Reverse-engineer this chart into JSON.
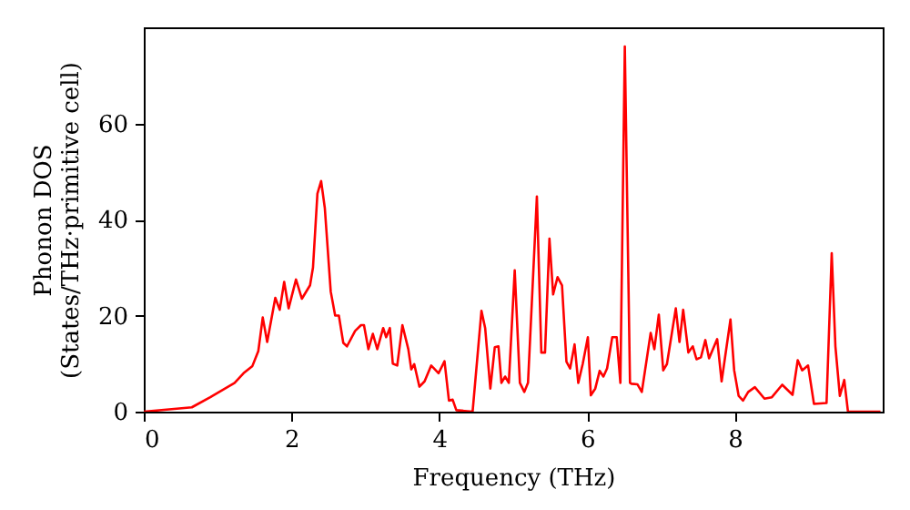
{
  "chart_data": {
    "type": "line",
    "xlabel": "Frequency (THz)",
    "ylabel": "Phonon DOS\n(States/THz·primitive cell)",
    "xlim": [
      0,
      10
    ],
    "ylim": [
      0,
      80
    ],
    "xticks": [
      0,
      2,
      4,
      6,
      8
    ],
    "yticks": [
      0,
      20,
      40,
      60
    ],
    "grid": false,
    "marker": "none",
    "line_style": "solid",
    "series": [
      {
        "color": "#ff0000",
        "x": [
          0,
          0.65,
          0.9,
          1.23,
          1.35,
          1.47,
          1.55,
          1.61,
          1.67,
          1.78,
          1.84,
          1.9,
          1.96,
          2.06,
          2.14,
          2.25,
          2.29,
          2.35,
          2.4,
          2.45,
          2.53,
          2.59,
          2.64,
          2.7,
          2.75,
          2.86,
          2.94,
          2.98,
          3.04,
          3.1,
          3.16,
          3.24,
          3.28,
          3.33,
          3.37,
          3.43,
          3.5,
          3.58,
          3.62,
          3.66,
          3.73,
          3.8,
          3.89,
          3.99,
          4.07,
          4.13,
          4.18,
          4.23,
          4.45,
          4.57,
          4.62,
          4.69,
          4.75,
          4.8,
          4.84,
          4.89,
          4.94,
          5.02,
          5.09,
          5.15,
          5.2,
          5.32,
          5.38,
          5.43,
          5.49,
          5.54,
          5.6,
          5.66,
          5.72,
          5.77,
          5.83,
          5.88,
          5.94,
          6.01,
          6.05,
          6.11,
          6.17,
          6.22,
          6.27,
          6.34,
          6.4,
          6.45,
          6.51,
          6.58,
          6.6,
          6.68,
          6.74,
          6.86,
          6.91,
          6.97,
          7.03,
          7.08,
          7.2,
          7.25,
          7.3,
          7.37,
          7.43,
          7.48,
          7.54,
          7.6,
          7.65,
          7.76,
          7.82,
          7.94,
          7.99,
          8.05,
          8.11,
          8.18,
          8.27,
          8.4,
          8.5,
          8.64,
          8.78,
          8.85,
          8.91,
          8.99,
          9.07,
          9.24,
          9.31,
          9.36,
          9.42,
          9.48,
          9.53,
          9.97
        ],
        "values": [
          0,
          0.9,
          3,
          6,
          8,
          9.5,
          12.6,
          19.6,
          14.5,
          23.7,
          21.2,
          27,
          21.5,
          27.5,
          23.5,
          26.3,
          30,
          45.4,
          48,
          42.4,
          25,
          20,
          20,
          14.3,
          13.6,
          16.8,
          18,
          18,
          13,
          16.2,
          13,
          17.4,
          15.5,
          17.4,
          10,
          9.6,
          18,
          13,
          8.8,
          9.9,
          5.2,
          6.3,
          9.6,
          8,
          10.5,
          2.3,
          2.5,
          0.3,
          0,
          21,
          17.4,
          4.8,
          13.4,
          13.6,
          6,
          7.3,
          6,
          29.4,
          6,
          4.1,
          6,
          44.8,
          12.3,
          12.3,
          36,
          24.4,
          28,
          26.3,
          10.4,
          9,
          14,
          6,
          9.9,
          15.5,
          3.4,
          4.8,
          8.5,
          7.3,
          9,
          15.5,
          15.5,
          6,
          76,
          6,
          5.8,
          5.7,
          4.1,
          16.4,
          13,
          20.2,
          8.6,
          9.9,
          21.5,
          14.5,
          21.2,
          12.3,
          13.6,
          10.9,
          11.3,
          14.9,
          11.1,
          15.1,
          6.3,
          19.2,
          8.6,
          3.3,
          2.3,
          4.1,
          5.1,
          2.7,
          3,
          5.6,
          3.5,
          10.7,
          8.6,
          9.6,
          1.6,
          1.8,
          33,
          13.6,
          3.3,
          6.6,
          0,
          0
        ]
      }
    ]
  }
}
